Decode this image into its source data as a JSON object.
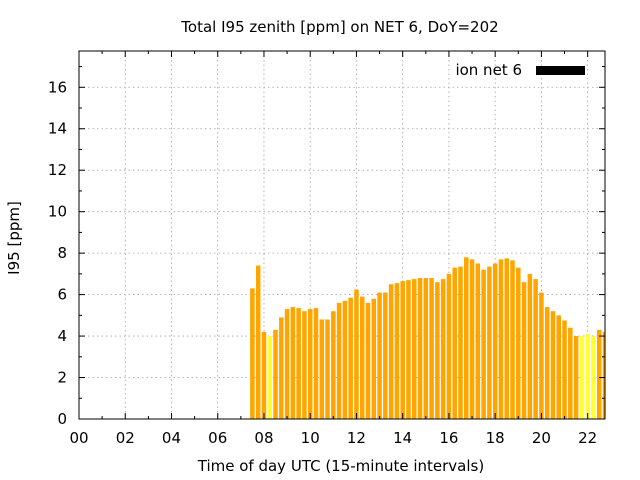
{
  "chart_data": {
    "type": "bar",
    "title": "Total I95 zenith [ppm] on NET 6, DoY=202",
    "xlabel": "Time of day UTC (15-minute intervals)",
    "ylabel": "I95 [ppm]",
    "xlim": [
      0,
      22.75
    ],
    "ylim": [
      0,
      17.75
    ],
    "x_ticks": [
      "00",
      "02",
      "04",
      "06",
      "08",
      "10",
      "12",
      "14",
      "16",
      "18",
      "20",
      "22"
    ],
    "y_ticks": [
      "0",
      "2",
      "4",
      "6",
      "8",
      "10",
      "12",
      "14",
      "16"
    ],
    "grid": true,
    "legend_position": "top-right",
    "bar_interval_hours": 0.25,
    "series": [
      {
        "name": "ion net 6",
        "legend_color": "#000000",
        "bar_color": "#ffa500",
        "highlight_color": "#ffff33",
        "values": [
          {
            "x": 7.5,
            "y": 6.3
          },
          {
            "x": 7.75,
            "y": 7.4
          },
          {
            "x": 8.0,
            "y": 4.2
          },
          {
            "x": 8.25,
            "y": 4.0,
            "highlight": true
          },
          {
            "x": 8.5,
            "y": 4.3
          },
          {
            "x": 8.75,
            "y": 4.9
          },
          {
            "x": 9.0,
            "y": 5.3
          },
          {
            "x": 9.25,
            "y": 5.4
          },
          {
            "x": 9.5,
            "y": 5.35
          },
          {
            "x": 9.75,
            "y": 5.2
          },
          {
            "x": 10.0,
            "y": 5.3
          },
          {
            "x": 10.25,
            "y": 5.35
          },
          {
            "x": 10.5,
            "y": 4.8
          },
          {
            "x": 10.75,
            "y": 4.8
          },
          {
            "x": 11.0,
            "y": 5.2
          },
          {
            "x": 11.25,
            "y": 5.6
          },
          {
            "x": 11.5,
            "y": 5.7
          },
          {
            "x": 11.75,
            "y": 5.85
          },
          {
            "x": 12.0,
            "y": 6.25
          },
          {
            "x": 12.25,
            "y": 5.9
          },
          {
            "x": 12.5,
            "y": 5.6
          },
          {
            "x": 12.75,
            "y": 5.8
          },
          {
            "x": 13.0,
            "y": 6.1
          },
          {
            "x": 13.25,
            "y": 6.1
          },
          {
            "x": 13.5,
            "y": 6.5
          },
          {
            "x": 13.75,
            "y": 6.55
          },
          {
            "x": 14.0,
            "y": 6.65
          },
          {
            "x": 14.25,
            "y": 6.7
          },
          {
            "x": 14.5,
            "y": 6.75
          },
          {
            "x": 14.75,
            "y": 6.8
          },
          {
            "x": 15.0,
            "y": 6.8
          },
          {
            "x": 15.25,
            "y": 6.8
          },
          {
            "x": 15.5,
            "y": 6.6
          },
          {
            "x": 15.75,
            "y": 6.75
          },
          {
            "x": 16.0,
            "y": 7.0
          },
          {
            "x": 16.25,
            "y": 7.3
          },
          {
            "x": 16.5,
            "y": 7.35
          },
          {
            "x": 16.75,
            "y": 7.8
          },
          {
            "x": 17.0,
            "y": 7.7
          },
          {
            "x": 17.25,
            "y": 7.5
          },
          {
            "x": 17.5,
            "y": 7.2
          },
          {
            "x": 17.75,
            "y": 7.35
          },
          {
            "x": 18.0,
            "y": 7.5
          },
          {
            "x": 18.25,
            "y": 7.7
          },
          {
            "x": 18.5,
            "y": 7.75
          },
          {
            "x": 18.75,
            "y": 7.65
          },
          {
            "x": 19.0,
            "y": 7.3
          },
          {
            "x": 19.25,
            "y": 6.6
          },
          {
            "x": 19.5,
            "y": 7.0
          },
          {
            "x": 19.75,
            "y": 6.75
          },
          {
            "x": 20.0,
            "y": 6.1
          },
          {
            "x": 20.25,
            "y": 5.4
          },
          {
            "x": 20.5,
            "y": 5.2
          },
          {
            "x": 20.75,
            "y": 5.0
          },
          {
            "x": 21.0,
            "y": 4.75
          },
          {
            "x": 21.25,
            "y": 4.4
          },
          {
            "x": 21.5,
            "y": 4.0
          },
          {
            "x": 21.75,
            "y": 4.0,
            "highlight": true
          },
          {
            "x": 22.0,
            "y": 4.1,
            "highlight": true
          },
          {
            "x": 22.25,
            "y": 4.0,
            "highlight": true
          },
          {
            "x": 22.5,
            "y": 4.3
          },
          {
            "x": 22.75,
            "y": 4.2
          }
        ]
      }
    ]
  }
}
